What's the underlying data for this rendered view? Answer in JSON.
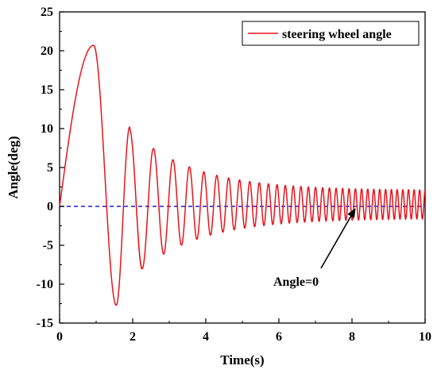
{
  "chart_data": {
    "type": "line",
    "title": "",
    "xlabel": "Time(s)",
    "ylabel": "Angle(deg)",
    "xlim": [
      0,
      10
    ],
    "ylim": [
      -15,
      25
    ],
    "xticks": [
      0,
      2,
      4,
      6,
      8,
      10
    ],
    "yticks": [
      -15,
      -10,
      -5,
      0,
      5,
      10,
      15,
      20,
      25
    ],
    "grid": false,
    "legend_position": "top-right",
    "series": [
      {
        "name": "steering wheel angle",
        "color": "#e8141b",
        "description": "damped oscillation",
        "key_points": [
          {
            "x": 0.0,
            "y": 0.0
          },
          {
            "x": 0.93,
            "y": 20.7
          },
          {
            "x": 1.55,
            "y": -12.7
          },
          {
            "x": 1.92,
            "y": 10.2
          },
          {
            "x": 2.2,
            "y": -9.2
          },
          {
            "x": 10.0,
            "y": 1.8
          }
        ]
      }
    ],
    "reference_line": {
      "y": 0,
      "color": "#1a1ad6",
      "style": "dashed"
    },
    "annotations": [
      {
        "text": "Angle=0",
        "arrow_to": {
          "x": 8.1,
          "y": 0
        }
      }
    ]
  }
}
